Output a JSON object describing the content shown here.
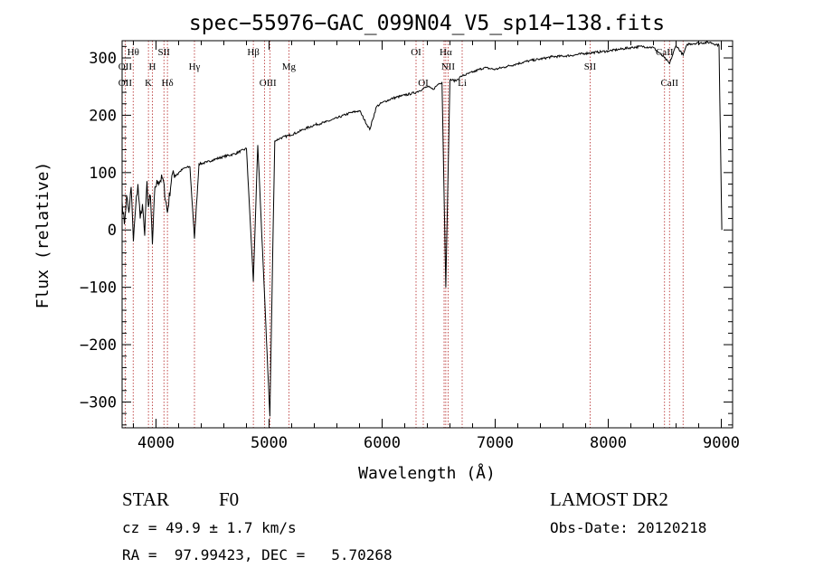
{
  "chart_data": {
    "type": "line",
    "title": "spec−55976−GAC_099N04_V5_sp14−138.fits",
    "xlabel": "Wavelength (Å)",
    "ylabel": "Flux (relative)",
    "xlim": [
      3700,
      9100
    ],
    "ylim": [
      -345,
      330
    ],
    "x_ticks": [
      4000,
      5000,
      6000,
      7000,
      8000,
      9000
    ],
    "y_ticks": [
      -300,
      -200,
      -100,
      0,
      100,
      200,
      300
    ],
    "grid": false,
    "series": [
      {
        "x": [
          3700,
          3720,
          3740,
          3760,
          3780,
          3800,
          3820,
          3840,
          3860,
          3880,
          3900,
          3920,
          3933,
          3950,
          3968,
          3990,
          4020,
          4060,
          4101,
          4140,
          4200,
          4250,
          4300,
          4340,
          4380,
          4450,
          4500,
          4600,
          4700,
          4800,
          4861,
          4900,
          4959,
          5007,
          5050,
          5100,
          5175,
          5250,
          5300,
          5400,
          5500,
          5600,
          5700,
          5800,
          5890,
          5950,
          6000,
          6100,
          6200,
          6300,
          6400,
          6450,
          6500,
          6530,
          6563,
          6600,
          6650,
          6700,
          6800,
          6900,
          7000,
          7100,
          7200,
          7300,
          7400,
          7500,
          7600,
          7700,
          7800,
          7900,
          8000,
          8100,
          8200,
          8300,
          8400,
          8498,
          8542,
          8600,
          8662,
          8700,
          8800,
          8900,
          8980,
          9000,
          9005
        ],
        "y": [
          50,
          10,
          60,
          30,
          75,
          -20,
          40,
          80,
          20,
          45,
          -10,
          85,
          40,
          60,
          -25,
          75,
          85,
          90,
          30,
          95,
          100,
          108,
          110,
          -15,
          115,
          118,
          122,
          128,
          133,
          142,
          -90,
          148,
          -110,
          -325,
          155,
          160,
          165,
          170,
          175,
          183,
          188,
          195,
          203,
          208,
          175,
          215,
          222,
          230,
          235,
          240,
          250,
          245,
          255,
          258,
          -100,
          262,
          260,
          268,
          275,
          283,
          280,
          285,
          290,
          295,
          298,
          302,
          303,
          305,
          308,
          310,
          312,
          315,
          318,
          320,
          318,
          300,
          290,
          322,
          305,
          324,
          326,
          327,
          322,
          60,
          0
        ]
      }
    ],
    "line_markers": [
      {
        "label": "Hθ",
        "x": 3798,
        "row": 0
      },
      {
        "label": "OII",
        "x": 3727,
        "row": 1
      },
      {
        "label": "OII",
        "x": 3727,
        "row": 2
      },
      {
        "label": "H",
        "x": 3968,
        "row": 1
      },
      {
        "label": "K",
        "x": 3933,
        "row": 2
      },
      {
        "label": "SII",
        "x": 4070,
        "row": 0
      },
      {
        "label": "Hδ",
        "x": 4101,
        "row": 2
      },
      {
        "label": "Hγ",
        "x": 4340,
        "row": 1
      },
      {
        "label": "Hβ",
        "x": 4861,
        "row": 0
      },
      {
        "label": "Mg",
        "x": 5175,
        "row": 1
      },
      {
        "label": "OIII",
        "x": 4990,
        "row": 2
      },
      {
        "label": "OI",
        "x": 6300,
        "row": 0
      },
      {
        "label": "OI",
        "x": 6364,
        "row": 2
      },
      {
        "label": "Hα",
        "x": 6563,
        "row": 0
      },
      {
        "label": "NII",
        "x": 6583,
        "row": 1
      },
      {
        "label": "Li",
        "x": 6708,
        "row": 2
      },
      {
        "label": "SII",
        "x": 7840,
        "row": 1
      },
      {
        "label": "CaII",
        "x": 8498,
        "row": 0
      },
      {
        "label": "CaII",
        "x": 8542,
        "row": 2
      }
    ],
    "marker_lines": [
      3727,
      3798,
      3933,
      3968,
      4070,
      4101,
      4340,
      4861,
      4959,
      5007,
      5175,
      6300,
      6364,
      6548,
      6563,
      6583,
      6708,
      7840,
      8498,
      8542,
      8662
    ]
  },
  "info": {
    "class": "STAR",
    "subclass": "F0",
    "survey": "LAMOST DR2",
    "cz": "cz = 49.9 ± 1.7 km/s",
    "obs_date": "Obs-Date: 20120218",
    "coords": "RA =  97.99423, DEC =   5.70268"
  }
}
